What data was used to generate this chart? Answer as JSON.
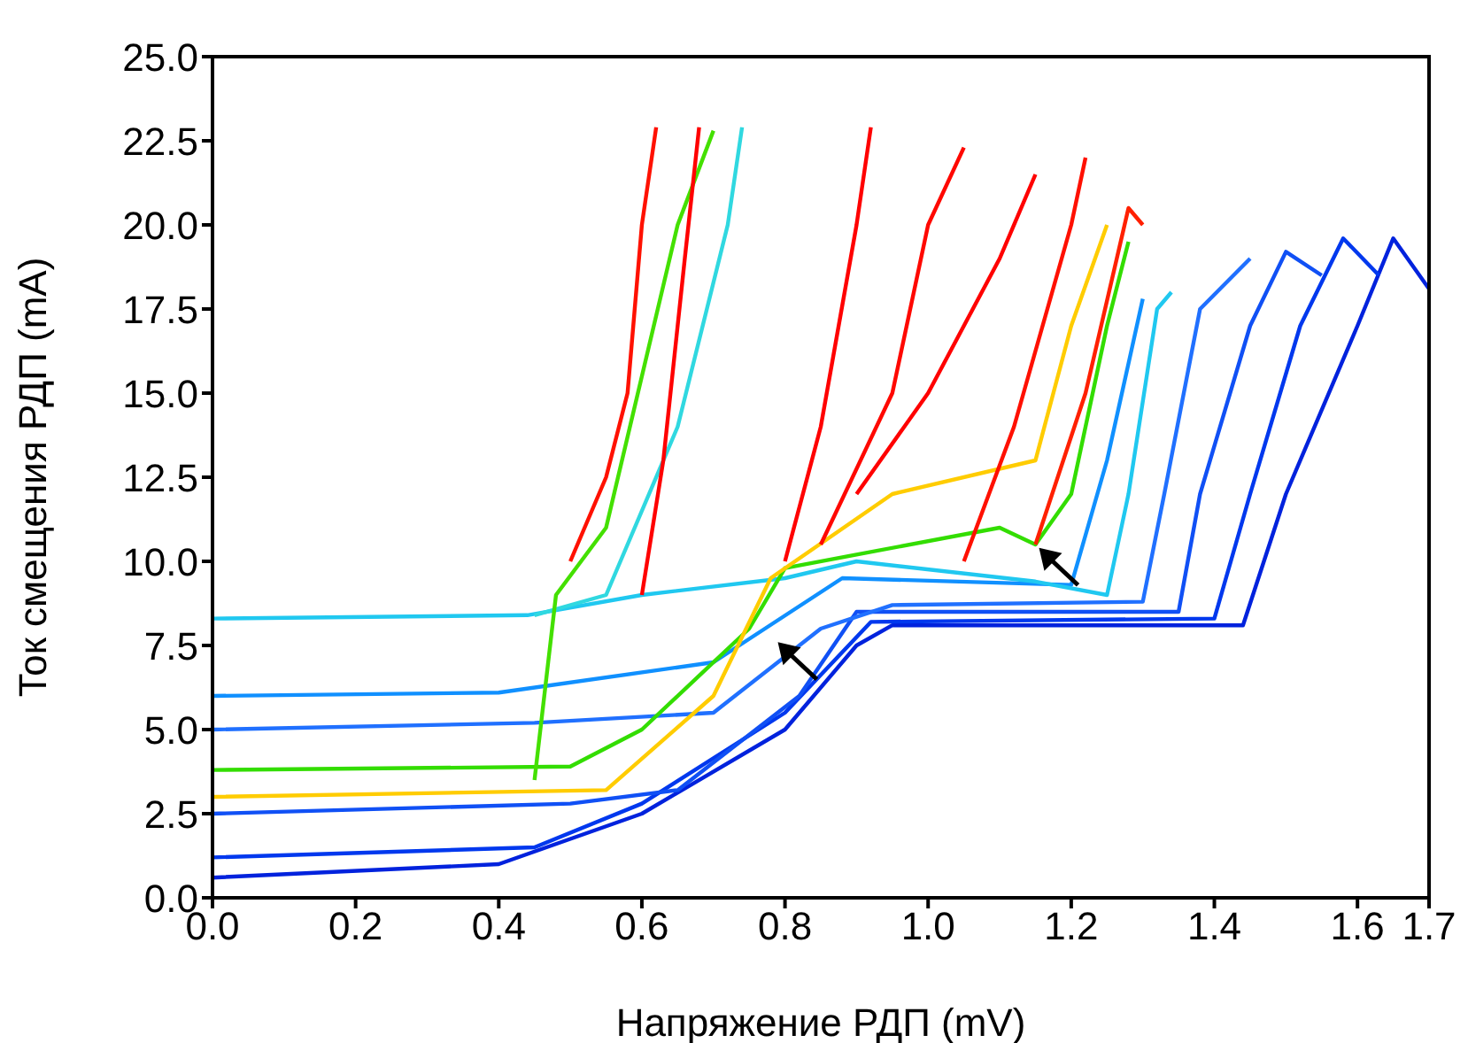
{
  "chart_data": {
    "type": "line",
    "xlabel": "Напряжение РДП (mV)",
    "ylabel": "Ток смещения РДП (mA)",
    "xlim": [
      0,
      1.7
    ],
    "ylim": [
      0,
      25
    ],
    "xticks": [
      {
        "value": 0,
        "label": "0.0"
      },
      {
        "value": 0.2,
        "label": "0.2"
      },
      {
        "value": 0.4,
        "label": "0.4"
      },
      {
        "value": 0.6,
        "label": "0.6"
      },
      {
        "value": 0.8,
        "label": "0.8"
      },
      {
        "value": 1.0,
        "label": "1.0"
      },
      {
        "value": 1.2,
        "label": "1.2"
      },
      {
        "value": 1.4,
        "label": "1.4"
      },
      {
        "value": 1.6,
        "label": "1.6"
      },
      {
        "value": 1.7,
        "label": "1.7"
      }
    ],
    "yticks": [
      {
        "value": 0,
        "label": "0.0"
      },
      {
        "value": 2.5,
        "label": "2.5"
      },
      {
        "value": 5,
        "label": "5.0"
      },
      {
        "value": 7.5,
        "label": "7.5"
      },
      {
        "value": 10,
        "label": "10.0"
      },
      {
        "value": 12.5,
        "label": "12.5"
      },
      {
        "value": 15,
        "label": "15.0"
      },
      {
        "value": 17.5,
        "label": "17.5"
      },
      {
        "value": 20,
        "label": "20.0"
      },
      {
        "value": 22.5,
        "label": "22.5"
      },
      {
        "value": 25,
        "label": "25.0"
      }
    ],
    "grid": false,
    "legend": false,
    "marker": "none",
    "line_style": "solid",
    "series": [
      {
        "color": "#0022dd",
        "x": [
          0,
          0.4,
          0.6,
          0.8,
          0.9,
          0.95,
          1.44,
          1.5,
          1.6,
          1.65,
          1.7
        ],
        "values": [
          0.6,
          1.0,
          2.5,
          5.0,
          7.5,
          8.1,
          8.1,
          12,
          17,
          19.6,
          18.1
        ]
      },
      {
        "color": "#0038ee",
        "x": [
          0,
          0.45,
          0.6,
          0.8,
          0.92,
          1.4,
          1.45,
          1.52,
          1.58,
          1.63
        ],
        "values": [
          1.2,
          1.5,
          2.8,
          5.5,
          8.2,
          8.3,
          12,
          17,
          19.6,
          18.5
        ]
      },
      {
        "color": "#1050f5",
        "x": [
          0,
          0.5,
          0.65,
          0.82,
          0.9,
          1.35,
          1.38,
          1.45,
          1.5,
          1.55
        ],
        "values": [
          2.5,
          2.8,
          3.2,
          6,
          8.5,
          8.5,
          12,
          17,
          19.2,
          18.5
        ]
      },
      {
        "color": "#2070ff",
        "x": [
          0,
          0.45,
          0.7,
          0.85,
          0.95,
          1.3,
          1.33,
          1.38,
          1.45
        ],
        "values": [
          5.0,
          5.2,
          5.5,
          8,
          8.7,
          8.8,
          12,
          17.5,
          19
        ]
      },
      {
        "color": "#1090ff",
        "x": [
          0,
          0.4,
          0.7,
          0.88,
          1.2,
          1.25,
          1.3
        ],
        "values": [
          6,
          6.1,
          7,
          9.5,
          9.3,
          13,
          17.8
        ]
      },
      {
        "color": "#20c8f0",
        "x": [
          0,
          0.44,
          0.6,
          0.8,
          0.9,
          1.15,
          1.25,
          1.28,
          1.32,
          1.34
        ],
        "values": [
          8.3,
          8.4,
          9,
          9.5,
          10,
          9.4,
          9,
          12,
          17.5,
          18
        ]
      },
      {
        "color": "#30d8e0",
        "x": [
          0.45,
          0.55,
          0.65,
          0.72,
          0.74
        ],
        "values": [
          8.4,
          9,
          14,
          20,
          22.9
        ]
      },
      {
        "color": "#33dd00",
        "x": [
          0,
          0.5,
          0.6,
          0.75,
          0.8,
          0.9,
          1.1,
          1.15,
          1.2,
          1.25,
          1.28
        ],
        "values": [
          3.8,
          3.9,
          5,
          8,
          9.8,
          10.2,
          11,
          10.5,
          12,
          17,
          19.5
        ]
      },
      {
        "color": "#44e000",
        "x": [
          0.45,
          0.48,
          0.55,
          0.65,
          0.7
        ],
        "values": [
          3.5,
          9,
          11,
          20,
          22.8
        ]
      },
      {
        "color": "#ffcc00",
        "x": [
          0,
          0.55,
          0.7,
          0.78,
          0.95,
          1.15,
          1.2,
          1.25
        ],
        "values": [
          3,
          3.2,
          6,
          9.5,
          12,
          13,
          17,
          20
        ]
      },
      {
        "color": "#ff1100",
        "x": [
          0.5,
          0.55,
          0.58,
          0.6,
          0.62
        ],
        "values": [
          10,
          12.5,
          15,
          20,
          22.9
        ]
      },
      {
        "color": "#ff0000",
        "x": [
          0.6,
          0.63,
          0.66,
          0.68
        ],
        "values": [
          9,
          13,
          19,
          22.9
        ]
      },
      {
        "color": "#ff0000",
        "x": [
          0.8,
          0.85,
          0.9,
          0.92
        ],
        "values": [
          10,
          14,
          20,
          22.9
        ]
      },
      {
        "color": "#ff0800",
        "x": [
          0.85,
          0.95,
          1.0,
          1.05
        ],
        "values": [
          10.5,
          15,
          20,
          22.3
        ]
      },
      {
        "color": "#ff0000",
        "x": [
          0.9,
          1.0,
          1.1,
          1.15
        ],
        "values": [
          12,
          15,
          19,
          21.5
        ]
      },
      {
        "color": "#ff1000",
        "x": [
          1.05,
          1.12,
          1.2,
          1.22
        ],
        "values": [
          10,
          14,
          20,
          22
        ]
      },
      {
        "color": "#ff2000",
        "x": [
          1.15,
          1.22,
          1.28,
          1.3
        ],
        "values": [
          10.5,
          15,
          20.5,
          20
        ]
      }
    ]
  }
}
